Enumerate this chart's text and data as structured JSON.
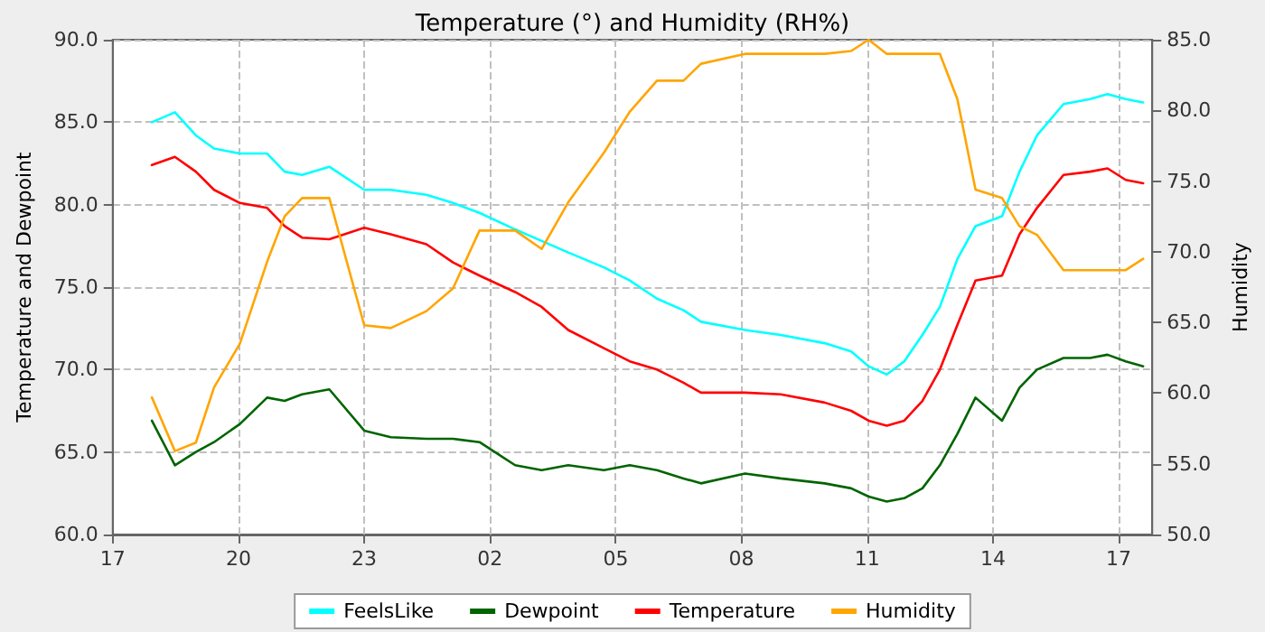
{
  "chart_data": {
    "type": "line",
    "title": "Temperature (°) and Humidity (RH%)",
    "ylabel": "Temperature and Dewpoint",
    "y2label": "Humidity",
    "x": [
      "--01-01T17:56",
      "--01-01T18:29",
      "--01-01T18:59",
      "--01-01T19:25",
      "--01-01T20:02",
      "--01-01T20:41",
      "--01-01T21:06",
      "--01-01T21:31",
      "--01-01T22:10",
      "--01-01T23:00",
      "--01-01T23:38",
      "--01-02T00:29",
      "--01-02T01:07",
      "--01-02T01:45",
      "--01-02T02:36",
      "--01-02T03:14",
      "--01-02T03:52",
      "--01-02T04:43",
      "--01-02T05:20",
      "--01-02T05:59",
      "--01-02T06:37",
      "--01-02T07:02",
      "--01-02T08:05",
      "--01-02T08:56",
      "--01-02T09:59",
      "--01-02T10:37",
      "--01-02T11:02",
      "--01-02T11:28",
      "--01-02T11:53",
      "--01-02T12:19",
      "--01-02T12:44",
      "--01-02T13:09",
      "--01-02T13:35",
      "--01-02T14:13",
      "--01-02T14:38",
      "--01-02T15:03",
      "--01-02T15:41",
      "--01-02T16:19",
      "--01-02T16:44",
      "--01-02T17:10",
      "--01-02T17:35"
    ],
    "series": [
      {
        "name": "FeelsLike",
        "color": "#00ffff",
        "values": [
          85.0,
          85.6,
          84.2,
          83.4,
          83.1,
          83.1,
          82.0,
          81.8,
          82.3,
          80.9,
          80.9,
          80.6,
          80.1,
          79.5,
          78.5,
          77.8,
          77.1,
          76.2,
          75.4,
          74.3,
          73.6,
          72.9,
          72.4,
          72.1,
          71.6,
          71.1,
          70.2,
          69.7,
          70.5,
          72.1,
          73.8,
          76.7,
          78.7,
          79.3,
          82.0,
          84.2,
          86.1,
          86.4,
          86.7,
          86.4,
          86.2
        ]
      },
      {
        "name": "Dewpoint",
        "color": "#006400",
        "values": [
          66.9,
          64.2,
          65.0,
          65.6,
          66.7,
          68.3,
          68.1,
          68.5,
          68.8,
          66.3,
          65.9,
          65.8,
          65.8,
          65.6,
          64.2,
          63.9,
          64.2,
          63.9,
          64.2,
          63.9,
          63.4,
          63.1,
          63.7,
          63.4,
          63.1,
          62.8,
          62.3,
          62.0,
          62.2,
          62.8,
          64.2,
          66.1,
          68.3,
          66.9,
          68.9,
          70.0,
          70.7,
          70.7,
          70.9,
          70.5,
          70.2
        ]
      },
      {
        "name": "Temperature",
        "color": "#ff0000",
        "values": [
          82.4,
          82.9,
          82.0,
          80.9,
          80.1,
          79.8,
          78.7,
          78.0,
          77.9,
          78.6,
          78.2,
          77.6,
          76.5,
          75.7,
          74.7,
          73.8,
          72.4,
          71.3,
          70.5,
          70.0,
          69.2,
          68.6,
          68.6,
          68.5,
          68.0,
          67.5,
          66.9,
          66.6,
          66.9,
          68.1,
          70.0,
          72.7,
          75.4,
          75.7,
          78.2,
          79.8,
          81.8,
          82.0,
          82.2,
          81.5,
          81.3
        ]
      },
      {
        "name": "Humidity",
        "color": "#ffa500",
        "axis": "y2",
        "values": [
          59.7,
          55.9,
          56.5,
          60.4,
          63.5,
          69.3,
          72.5,
          73.8,
          73.8,
          64.8,
          64.6,
          65.8,
          67.4,
          71.5,
          71.5,
          70.2,
          73.5,
          77.0,
          79.9,
          82.1,
          82.1,
          83.3,
          84.0,
          84.0,
          84.0,
          84.2,
          85.0,
          84.0,
          84.0,
          84.0,
          84.0,
          80.8,
          74.4,
          73.8,
          71.8,
          71.2,
          68.7,
          68.7,
          68.7,
          68.7,
          69.5
        ]
      }
    ],
    "xlim": [
      "--01-01T17:00",
      "--01-02T17:48"
    ],
    "xticks": [
      {
        "value": "--01-01T17:00",
        "label": "17"
      },
      {
        "value": "--01-01T20:00",
        "label": "20"
      },
      {
        "value": "--01-01T23:00",
        "label": "23"
      },
      {
        "value": "--01-02T02:00",
        "label": "02"
      },
      {
        "value": "--01-02T05:00",
        "label": "05"
      },
      {
        "value": "--01-02T08:00",
        "label": "08"
      },
      {
        "value": "--01-02T11:00",
        "label": "11"
      },
      {
        "value": "--01-02T14:00",
        "label": "14"
      },
      {
        "value": "--01-02T17:00",
        "label": "17"
      }
    ],
    "ylim": [
      60,
      90
    ],
    "yticks": [
      {
        "value": 60,
        "label": "60.0"
      },
      {
        "value": 65,
        "label": "65.0"
      },
      {
        "value": 70,
        "label": "70.0"
      },
      {
        "value": 75,
        "label": "75.0"
      },
      {
        "value": 80,
        "label": "80.0"
      },
      {
        "value": 85,
        "label": "85.0"
      },
      {
        "value": 90,
        "label": "90.0"
      }
    ],
    "y2lim": [
      50,
      85
    ],
    "y2ticks": [
      {
        "value": 50,
        "label": "50.0"
      },
      {
        "value": 55,
        "label": "55.0"
      },
      {
        "value": 60,
        "label": "60.0"
      },
      {
        "value": 65,
        "label": "65.0"
      },
      {
        "value": 70,
        "label": "70.0"
      },
      {
        "value": 75,
        "label": "75.0"
      },
      {
        "value": 80,
        "label": "80.0"
      },
      {
        "value": 85,
        "label": "85.0"
      }
    ],
    "grid": true,
    "legend": "bottom",
    "marker": "none",
    "line_style": "solid"
  }
}
